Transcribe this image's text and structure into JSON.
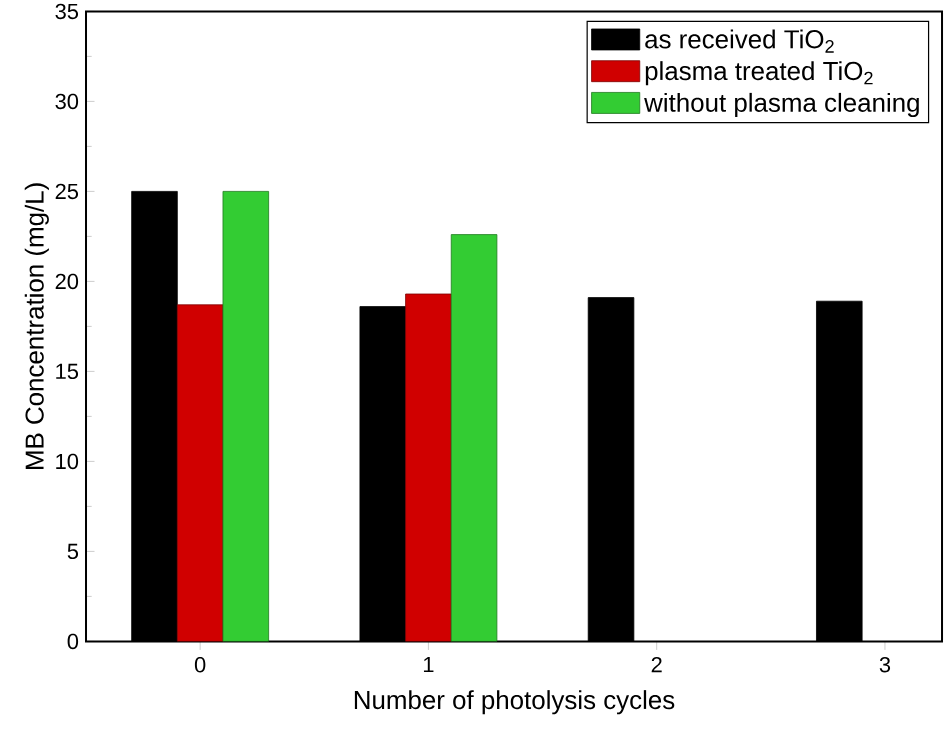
{
  "chart_data": {
    "type": "bar",
    "xlabel": "Number of photolysis cycles",
    "ylabel": "MB Concentration (mg/L)",
    "categories": [
      "0",
      "1",
      "2",
      "3"
    ],
    "series": [
      {
        "name": "as received TiO$_{2}$",
        "color": "#000000",
        "values": [
          25,
          18.6,
          19.1,
          18.9
        ]
      },
      {
        "name": "plasma treated TiO$_{2}$",
        "color": "#d00000",
        "values": [
          18.7,
          19.3,
          null,
          null
        ]
      },
      {
        "name": "without plasma cleaning",
        "color": "#33cc33",
        "values": [
          25,
          22.6,
          null,
          null
        ]
      }
    ],
    "ylim": [
      0,
      35
    ],
    "yticks": [
      0,
      5,
      10,
      15,
      20,
      25,
      30,
      35
    ],
    "grid": false,
    "legend": "top right"
  }
}
